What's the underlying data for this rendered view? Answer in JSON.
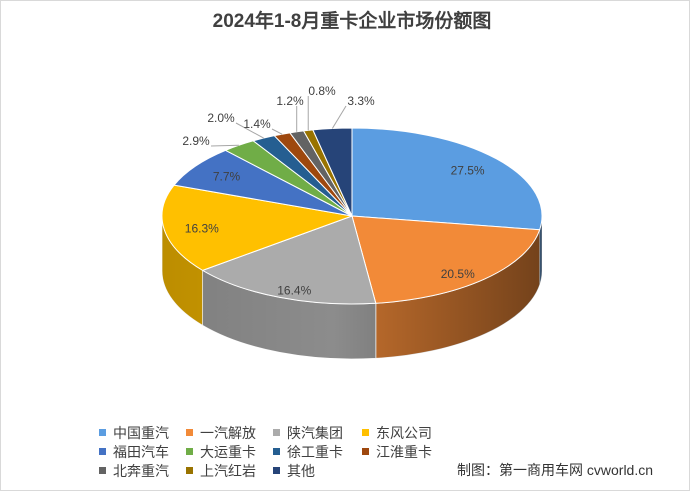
{
  "chart_data": {
    "type": "pie",
    "three_d": true,
    "title": "2024年1-8月重卡企业市场份额图",
    "categories": [
      "中国重汽",
      "一汽解放",
      "陕汽集团",
      "东风公司",
      "福田汽车",
      "大运重卡",
      "徐工重卡",
      "江淮重卡",
      "北奔重汽",
      "上汽红岩",
      "其他"
    ],
    "values": [
      27.5,
      20.5,
      16.4,
      16.3,
      7.7,
      2.9,
      2.0,
      1.4,
      1.2,
      0.8,
      3.3
    ],
    "data_labels": [
      "27.5%",
      "20.5%",
      "16.4%",
      "16.3%",
      "7.7%",
      "2.9%",
      "2.0%",
      "1.4%",
      "1.2%",
      "0.8%",
      "3.3%"
    ],
    "colors": [
      "#5B9DE1",
      "#F28A38",
      "#ABABAB",
      "#FFC000",
      "#4472C4",
      "#70AD47",
      "#255E91",
      "#9E480E",
      "#636363",
      "#997300",
      "#264478"
    ],
    "legend_position": "bottom"
  },
  "credit": "制图：第一商用车网 cvworld.cn"
}
